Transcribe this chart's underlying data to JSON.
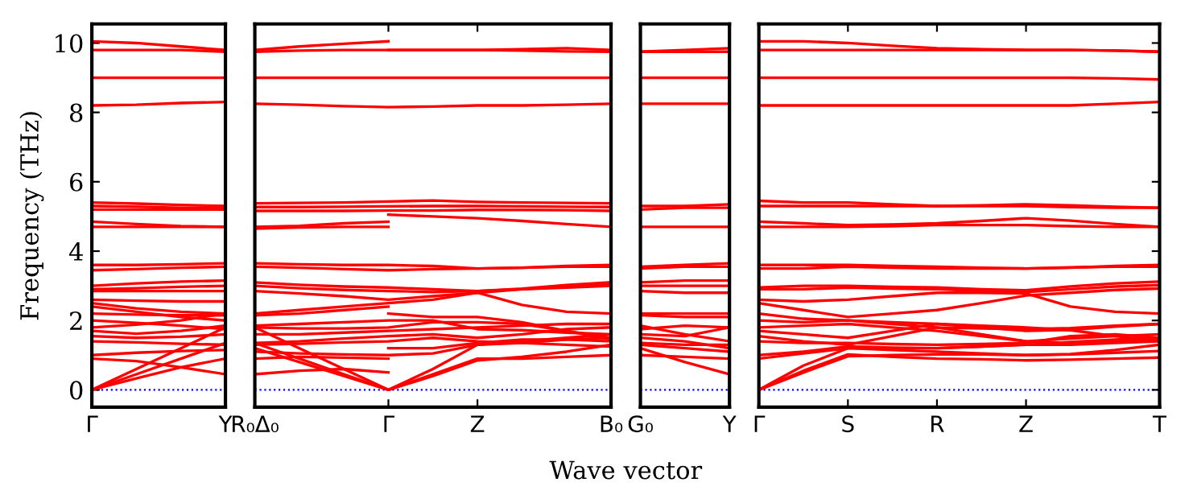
{
  "chart_data": [
    {
      "type": "line",
      "color": "#ff0000",
      "ylabel": "Frequency (THz)",
      "categories": [
        "Γ",
        null,
        null,
        "Y"
      ],
      "ylim": [
        -0.5,
        10.55
      ],
      "yticks": [
        0,
        2,
        4,
        6,
        8,
        10
      ],
      "grid": false,
      "ref_lines": [
        {
          "axis": "y",
          "value": 0,
          "color": "#0000ff",
          "line_style": "dotted"
        }
      ],
      "series": [
        {
          "values": [
            10.05,
            10.0,
            9.9,
            9.8
          ]
        },
        {
          "values": [
            9.8,
            9.8,
            9.8,
            9.75
          ]
        },
        {
          "values": [
            9.0,
            9.0,
            9.0,
            9.0
          ]
        },
        {
          "values": [
            8.2,
            8.22,
            8.27,
            8.3
          ]
        },
        {
          "values": [
            5.4,
            5.37,
            5.33,
            5.3
          ]
        },
        {
          "values": [
            5.3,
            5.28,
            5.25,
            5.25
          ]
        },
        {
          "values": [
            5.2,
            5.2,
            5.2,
            5.2
          ]
        },
        {
          "values": [
            4.85,
            4.78,
            4.72,
            4.7
          ]
        },
        {
          "values": [
            4.7,
            4.7,
            4.7,
            4.7
          ]
        },
        {
          "values": [
            3.6,
            3.6,
            3.62,
            3.65
          ]
        },
        {
          "values": [
            3.45,
            3.48,
            3.52,
            3.55
          ]
        },
        {
          "values": [
            3.0,
            3.07,
            3.12,
            3.15
          ]
        },
        {
          "values": [
            2.9,
            2.93,
            2.97,
            3.0
          ]
        },
        {
          "values": [
            2.85,
            2.85,
            2.85,
            2.85
          ]
        },
        {
          "values": [
            2.6,
            2.57,
            2.55,
            2.55
          ]
        },
        {
          "values": [
            2.5,
            2.35,
            2.25,
            2.2
          ]
        },
        {
          "values": [
            2.4,
            2.25,
            2.1,
            2.0
          ]
        },
        {
          "values": [
            2.2,
            2.17,
            2.15,
            2.15
          ]
        },
        {
          "values": [
            2.0,
            1.93,
            1.85,
            1.75
          ]
        },
        {
          "values": [
            1.8,
            1.88,
            2.0,
            2.2
          ]
        },
        {
          "values": [
            1.7,
            1.62,
            1.7,
            1.85
          ]
        },
        {
          "values": [
            1.55,
            1.5,
            1.53,
            1.6
          ]
        },
        {
          "values": [
            1.4,
            1.37,
            1.33,
            1.3
          ]
        },
        {
          "values": [
            1.0,
            1.07,
            1.12,
            1.15
          ]
        },
        {
          "values": [
            0.9,
            0.83,
            0.65,
            0.45
          ]
        },
        {
          "values": [
            0,
            0.6,
            1.2,
            1.8
          ]
        },
        {
          "values": [
            0,
            0.45,
            0.9,
            1.35
          ]
        },
        {
          "values": [
            0,
            0.33,
            0.65,
            0.9
          ]
        }
      ]
    },
    {
      "type": "line",
      "color": "#ff0000",
      "xlabel": "Wave vector",
      "tick_labels": "x",
      "categories": [
        "R₀Δ₀",
        null,
        null,
        "Γ",
        null,
        "Z",
        null,
        null,
        "B₀"
      ],
      "ylim": [
        -0.5,
        10.55
      ],
      "yticks": [
        0,
        2,
        4,
        6,
        8,
        10
      ],
      "grid": false,
      "ref_lines": [
        {
          "axis": "y",
          "value": 0,
          "color": "#0000ff",
          "line_style": "dotted"
        }
      ],
      "series": [
        {
          "values": [
            9.75,
            9.78,
            9.8,
            9.8,
            9.8,
            9.8,
            9.82,
            9.85,
            9.8
          ]
        },
        {
          "values": [
            9.8,
            9.9,
            9.98,
            10.05,
            null,
            null,
            null,
            null,
            null
          ]
        },
        {
          "values": [
            null,
            null,
            null,
            9.8,
            9.8,
            9.8,
            9.78,
            9.76,
            9.75
          ]
        },
        {
          "values": [
            9.0,
            9.0,
            9.0,
            9.0,
            9.0,
            9.0,
            9.0,
            9.0,
            9.0
          ]
        },
        {
          "values": [
            8.25,
            8.22,
            8.18,
            8.15,
            8.17,
            8.2,
            8.2,
            8.22,
            8.25
          ]
        },
        {
          "values": [
            5.38,
            5.39,
            5.4,
            5.43,
            5.46,
            5.42,
            5.4,
            5.39,
            5.38
          ]
        },
        {
          "values": [
            5.27,
            5.27,
            5.28,
            5.29,
            5.3,
            5.3,
            5.29,
            5.28,
            5.27
          ]
        },
        {
          "values": [
            5.16,
            5.16,
            5.16,
            5.17,
            5.17,
            5.19,
            5.19,
            5.18,
            5.16
          ]
        },
        {
          "values": [
            4.65,
            4.68,
            4.7,
            4.7,
            null,
            null,
            null,
            null,
            null
          ]
        },
        {
          "values": [
            4.7,
            4.73,
            4.8,
            4.85,
            null,
            null,
            null,
            null,
            null
          ]
        },
        {
          "values": [
            null,
            null,
            null,
            5.05,
            5.0,
            4.95,
            4.87,
            4.78,
            4.7
          ]
        },
        {
          "values": [
            3.65,
            3.62,
            3.6,
            3.6,
            3.57,
            3.5,
            3.52,
            3.57,
            3.6
          ]
        },
        {
          "values": [
            3.55,
            3.52,
            3.48,
            3.45,
            3.48,
            3.5,
            3.52,
            3.55,
            3.55
          ]
        },
        {
          "values": [
            3.1,
            3.03,
            2.98,
            2.95,
            2.9,
            2.85,
            2.92,
            3.02,
            3.1
          ]
        },
        {
          "values": [
            3.0,
            2.93,
            2.88,
            2.85,
            2.82,
            2.85,
            2.9,
            2.98,
            3.05
          ]
        },
        {
          "values": [
            2.85,
            2.78,
            2.7,
            2.6,
            2.7,
            2.8,
            2.45,
            2.25,
            2.2
          ]
        },
        {
          "values": [
            2.2,
            2.3,
            2.4,
            2.5,
            2.6,
            2.8,
            2.9,
            2.95,
            3.0
          ]
        },
        {
          "values": [
            2.15,
            2.2,
            2.3,
            2.4,
            null,
            null,
            null,
            null,
            null
          ]
        },
        {
          "values": [
            null,
            null,
            null,
            2.2,
            2.1,
            2.1,
            1.95,
            1.7,
            1.45
          ]
        },
        {
          "values": [
            1.85,
            1.9,
            1.95,
            2.0,
            2.0,
            1.75,
            1.72,
            1.65,
            1.6
          ]
        },
        {
          "values": [
            1.8,
            1.77,
            1.77,
            1.8,
            1.95,
            1.95,
            1.9,
            1.7,
            1.5
          ]
        },
        {
          "values": [
            1.6,
            1.6,
            1.65,
            1.7,
            1.75,
            1.8,
            1.85,
            1.9,
            1.9
          ]
        },
        {
          "values": [
            1.35,
            1.4,
            1.48,
            1.55,
            1.6,
            1.5,
            1.6,
            1.75,
            1.8
          ]
        },
        {
          "values": [
            1.3,
            1.33,
            1.37,
            1.4,
            1.5,
            1.4,
            1.35,
            1.3,
            1.25
          ]
        },
        {
          "values": [
            1.1,
            1.05,
            1.02,
            1.0,
            1.05,
            1.3,
            1.4,
            1.5,
            1.6
          ]
        },
        {
          "values": [
            0.9,
            0.95,
            0.93,
            0.9,
            null,
            null,
            null,
            null,
            null
          ]
        },
        {
          "values": [
            null,
            null,
            null,
            1.2,
            1.2,
            1.35,
            1.45,
            1.45,
            1.4
          ]
        },
        {
          "values": [
            0.45,
            0.55,
            0.6,
            0.5,
            null,
            null,
            null,
            null,
            null
          ]
        },
        {
          "values": [
            1.8,
            1.2,
            0.6,
            0,
            0.6,
            1.3,
            1.35,
            1.45,
            1.5
          ]
        },
        {
          "values": [
            1.35,
            0.9,
            0.45,
            0,
            0.45,
            0.9,
            0.9,
            0.95,
            1.0
          ]
        },
        {
          "values": [
            1.2,
            0.8,
            0.4,
            0,
            0.4,
            0.85,
            0.95,
            1.1,
            1.3
          ]
        }
      ]
    },
    {
      "type": "line",
      "color": "#ff0000",
      "tick_labels": "x",
      "categories": [
        "G₀",
        null,
        "Y"
      ],
      "ylim": [
        -0.5,
        10.55
      ],
      "yticks": [
        0,
        2,
        4,
        6,
        8,
        10
      ],
      "grid": false,
      "ref_lines": [
        {
          "axis": "y",
          "value": 0,
          "color": "#0000ff",
          "line_style": "dotted"
        }
      ],
      "series": [
        {
          "values": [
            9.75,
            9.8,
            9.85
          ]
        },
        {
          "values": [
            9.75,
            9.75,
            9.75
          ]
        },
        {
          "values": [
            9.0,
            9.0,
            9.0
          ]
        },
        {
          "values": [
            8.25,
            8.25,
            8.25
          ]
        },
        {
          "values": [
            5.3,
            5.3,
            5.35
          ]
        },
        {
          "values": [
            5.2,
            5.25,
            5.25
          ]
        },
        {
          "values": [
            4.7,
            4.7,
            4.7
          ]
        },
        {
          "values": [
            3.55,
            3.6,
            3.65
          ]
        },
        {
          "values": [
            3.5,
            3.55,
            3.55
          ]
        },
        {
          "values": [
            3.1,
            3.15,
            3.15
          ]
        },
        {
          "values": [
            3.0,
            3.0,
            3.0
          ]
        },
        {
          "values": [
            2.85,
            2.8,
            2.8
          ]
        },
        {
          "values": [
            2.2,
            2.2,
            2.2
          ]
        },
        {
          "values": [
            2.15,
            2.1,
            2.1
          ]
        },
        {
          "values": [
            1.85,
            1.6,
            1.4
          ]
        },
        {
          "values": [
            1.75,
            1.85,
            1.8
          ]
        },
        {
          "values": [
            1.6,
            1.55,
            1.8
          ]
        },
        {
          "values": [
            1.5,
            1.4,
            1.2
          ]
        },
        {
          "values": [
            1.35,
            1.3,
            1.3
          ]
        },
        {
          "values": [
            1.3,
            1.2,
            1.1
          ]
        },
        {
          "values": [
            1.0,
            0.95,
            0.9
          ]
        },
        {
          "values": [
            1.2,
            0.8,
            0.45
          ]
        }
      ]
    },
    {
      "type": "line",
      "color": "#ff0000",
      "tick_labels": "x",
      "categories": [
        "Γ",
        null,
        "S",
        null,
        "R",
        null,
        "Z",
        null,
        null,
        "T"
      ],
      "ylim": [
        -0.5,
        10.55
      ],
      "yticks": [
        0,
        2,
        4,
        6,
        8,
        10
      ],
      "grid": false,
      "ref_lines": [
        {
          "axis": "y",
          "value": 0,
          "color": "#0000ff",
          "line_style": "dotted"
        }
      ],
      "series": [
        {
          "values": [
            10.05,
            10.05,
            10.0,
            9.92,
            9.85,
            9.82,
            9.8,
            9.8,
            9.78,
            9.75
          ]
        },
        {
          "values": [
            9.8,
            9.8,
            9.8,
            9.8,
            9.8,
            9.8,
            9.8,
            9.8,
            9.78,
            9.75
          ]
        },
        {
          "values": [
            9.0,
            9.0,
            9.0,
            9.0,
            9.0,
            9.0,
            9.0,
            9.0,
            8.98,
            8.95
          ]
        },
        {
          "values": [
            8.2,
            8.2,
            8.2,
            8.2,
            8.2,
            8.2,
            8.2,
            8.2,
            8.25,
            8.3
          ]
        },
        {
          "values": [
            5.45,
            5.4,
            5.4,
            5.35,
            5.3,
            5.32,
            5.35,
            5.32,
            5.28,
            5.25
          ]
        },
        {
          "values": [
            5.3,
            5.3,
            5.3,
            5.3,
            5.3,
            5.3,
            5.3,
            5.27,
            5.25,
            5.25
          ]
        },
        {
          "values": [
            4.85,
            4.8,
            4.75,
            4.77,
            4.8,
            4.87,
            4.95,
            4.88,
            4.78,
            4.7
          ]
        },
        {
          "values": [
            4.7,
            4.7,
            4.7,
            4.72,
            4.75,
            4.75,
            4.75,
            4.72,
            4.7,
            4.7
          ]
        },
        {
          "values": [
            3.6,
            3.6,
            3.6,
            3.57,
            3.55,
            3.52,
            3.5,
            3.52,
            3.57,
            3.6
          ]
        },
        {
          "values": [
            3.5,
            3.5,
            3.55,
            3.52,
            3.5,
            3.5,
            3.5,
            3.53,
            3.55,
            3.55
          ]
        },
        {
          "values": [
            2.95,
            3.0,
            3.0,
            2.97,
            2.95,
            2.9,
            2.87,
            2.98,
            3.07,
            3.12
          ]
        },
        {
          "values": [
            2.9,
            2.9,
            2.95,
            2.92,
            2.9,
            2.85,
            2.82,
            2.9,
            2.98,
            3.02
          ]
        },
        {
          "values": [
            2.6,
            2.55,
            2.6,
            2.7,
            2.8,
            2.8,
            2.78,
            2.4,
            2.25,
            2.2
          ]
        },
        {
          "values": [
            2.5,
            2.3,
            2.1,
            2.2,
            2.3,
            2.5,
            2.72,
            2.8,
            2.88,
            2.92
          ]
        },
        {
          "values": [
            2.2,
            2.05,
            2.0,
            1.9,
            1.8,
            1.77,
            1.75,
            1.78,
            1.85,
            1.9
          ]
        },
        {
          "values": [
            2.0,
            1.95,
            2.0,
            1.95,
            1.9,
            1.8,
            1.7,
            1.73,
            1.82,
            1.9
          ]
        },
        {
          "values": [
            1.8,
            1.85,
            1.9,
            1.8,
            1.7,
            1.55,
            1.4,
            1.48,
            1.55,
            1.6
          ]
        },
        {
          "values": [
            1.7,
            1.6,
            1.5,
            1.7,
            1.9,
            1.85,
            1.8,
            1.72,
            1.55,
            1.4
          ]
        },
        {
          "values": [
            1.55,
            1.4,
            1.3,
            1.55,
            1.8,
            1.6,
            1.4,
            1.35,
            1.4,
            1.45
          ]
        },
        {
          "values": [
            1.4,
            1.35,
            1.35,
            1.32,
            1.3,
            1.32,
            1.35,
            1.55,
            1.6,
            1.5
          ]
        },
        {
          "values": [
            1.0,
            1.1,
            1.25,
            1.22,
            1.2,
            1.25,
            1.3,
            1.38,
            1.45,
            1.5
          ]
        },
        {
          "values": [
            0.9,
            1.05,
            1.2,
            1.15,
            1.1,
            1.05,
            1.0,
            1.03,
            1.15,
            1.3
          ]
        },
        {
          "values": [
            0,
            0.7,
            1.2,
            1.2,
            1.2,
            1.25,
            1.3,
            1.3,
            1.35,
            1.4
          ]
        },
        {
          "values": [
            0,
            0.55,
            1.02,
            0.95,
            0.9,
            0.88,
            0.85,
            0.87,
            0.9,
            0.93
          ]
        },
        {
          "values": [
            0,
            0.5,
            0.97,
            1.0,
            1.02,
            1.02,
            1.0,
            1.02,
            1.07,
            1.12
          ]
        }
      ]
    }
  ]
}
